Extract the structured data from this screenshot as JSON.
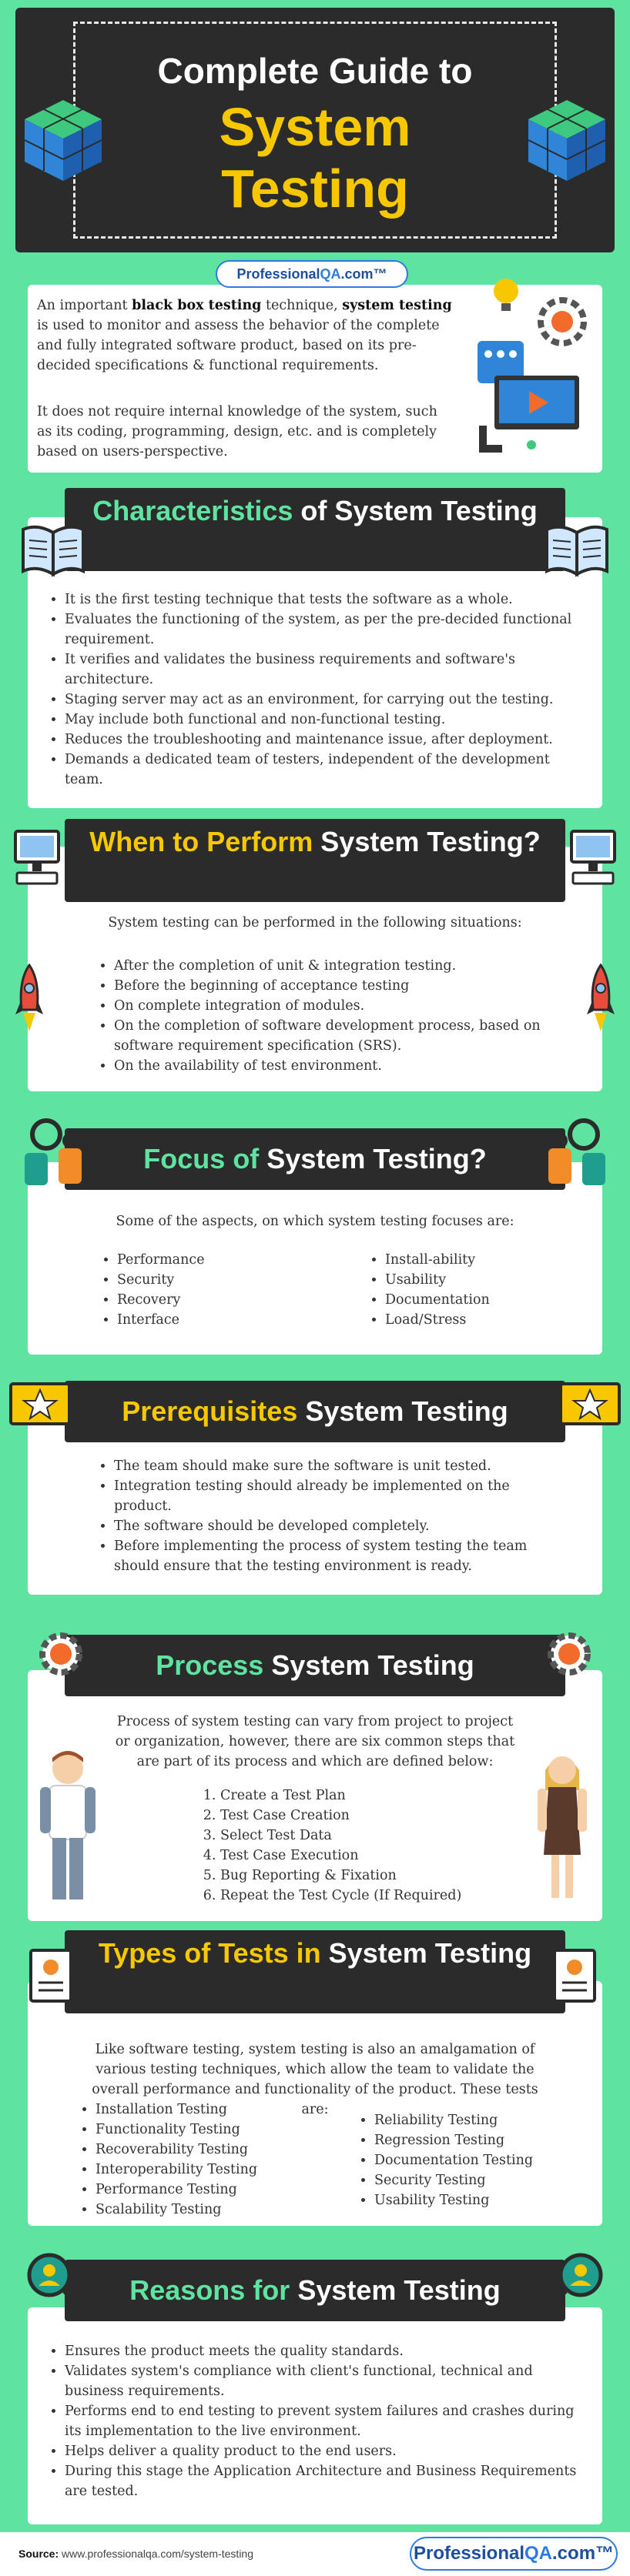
{
  "header": {
    "line1": "Complete Guide to",
    "line2": "System",
    "line3": "Testing"
  },
  "logo": {
    "prefix": "Professional",
    "qa": "QA",
    "suffix": ".com™"
  },
  "intro": {
    "p1_parts": [
      "An important ",
      "black box testing",
      " technique, ",
      "system testing",
      " is used to monitor and assess the behavior of the complete and fully integrated software product, based on its pre-decided specifications & functional requirements."
    ],
    "p2": "It does not require internal knowledge of the system, such as its coding, programming, design, etc. and is completely based on users-perspective."
  },
  "characteristics": {
    "title_hl": "Characteristics",
    "title_rest": " of System Testing",
    "items": [
      "It is the first testing technique that tests the software as a whole.",
      "Evaluates the functioning of the system, as per the pre-decided functional requirement.",
      "It verifies and validates the business requirements and software's architecture.",
      "Staging server may act as an environment, for carrying out the testing.",
      "May include both functional and non-functional testing.",
      "Reduces the troubleshooting and maintenance issue, after deployment.",
      "Demands a dedicated team of testers, independent of the development team."
    ]
  },
  "when": {
    "title_hl": "When to Perform",
    "title_rest": " System Testing?",
    "intro": "System testing can be performed in the following situations:",
    "items": [
      "After the completion of unit & integration testing.",
      "Before the beginning of acceptance testing",
      "On complete integration of modules.",
      "On the completion of software development process, based on software requirement specification (SRS).",
      "On the availability of test environment."
    ]
  },
  "focus": {
    "title_hl": "Focus of",
    "title_rest": " System Testing?",
    "intro": "Some of the aspects, on which system testing focuses are:",
    "left": [
      "Performance",
      "Security",
      "Recovery",
      "Interface"
    ],
    "right": [
      "Install-ability",
      "Usability",
      "Documentation",
      "Load/Stress"
    ]
  },
  "prereq": {
    "title_hl": "Prerequisites",
    "title_rest": " System Testing",
    "items": [
      "The team should make sure the software is unit tested.",
      "Integration testing should already be implemented on the product.",
      "The software should be developed completely.",
      "Before implementing the process of system testing the team should ensure that the testing environment is ready."
    ]
  },
  "process": {
    "title_hl": "Process",
    "title_rest": " System Testing",
    "intro": "Process of system testing can vary from project to project or organization, however, there are six common steps that are part of its process and which are defined below:",
    "steps": [
      "Create a Test Plan",
      "Test Case Creation",
      "Select Test Data",
      "Test Case Execution",
      "Bug Reporting & Fixation",
      "Repeat the Test Cycle (If Required)"
    ]
  },
  "types": {
    "title_hl": "Types of Tests in",
    "title_rest": " System Testing",
    "intro": "Like software testing, system testing is also an amalgamation of various testing techniques, which allow the team to validate the overall performance and functionality of the product. These tests are:",
    "left": [
      "Installation Testing",
      "Functionality Testing",
      "Recoverability Testing",
      "Interoperability Testing",
      "Performance Testing",
      "Scalability Testing"
    ],
    "right": [
      "Reliability Testing",
      "Regression Testing",
      "Documentation Testing",
      "Security Testing",
      "Usability Testing"
    ]
  },
  "reasons": {
    "title_hl": "Reasons for",
    "title_rest": " System Testing",
    "items": [
      "Ensures the product meets the quality standards.",
      "Validates system's compliance with client's functional, technical and business requirements.",
      "Performs end to end testing to prevent system failures and crashes during its implementation to the live environment.",
      "Helps deliver a quality product to the end users.",
      "During this stage the Application Architecture and Business Requirements are tested."
    ]
  },
  "footer": {
    "source_label": "Source:",
    "source_url": " www.professionalqa.com/system-testing",
    "logo_prefix": "Professional",
    "logo_qa": "QA",
    "logo_suffix": ".com™"
  },
  "colors": {
    "bg": "#5fe3a1",
    "dark": "#2b2b2b",
    "yellow": "#f7c800",
    "green": "#5fe3a1"
  }
}
